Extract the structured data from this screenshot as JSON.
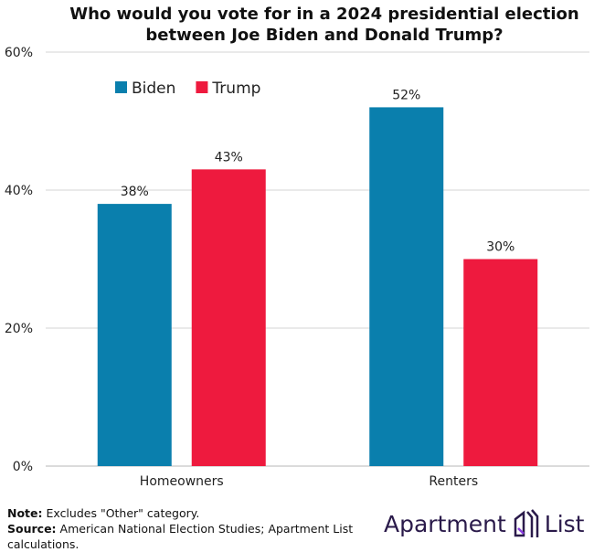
{
  "chart_data": {
    "type": "bar",
    "title": "Who would you vote for in a 2024 presidential election between Joe Biden and Donald Trump?",
    "title_lines": [
      "Who would you vote for in a 2024 presidential election",
      "between Joe Biden and Donald Trump?"
    ],
    "categories": [
      "Homeowners",
      "Renters"
    ],
    "series": [
      {
        "name": "Biden",
        "color": "#0a7fad",
        "values": [
          38,
          52
        ],
        "labels": [
          "38%",
          "52%"
        ]
      },
      {
        "name": "Trump",
        "color": "#ee1a3e",
        "values": [
          43,
          30
        ],
        "labels": [
          "43%",
          "30%"
        ]
      }
    ],
    "ylim": [
      0,
      60
    ],
    "yticks": [
      0,
      20,
      40,
      60
    ],
    "ytick_labels": [
      "0%",
      "20%",
      "40%",
      "60%"
    ],
    "grid": true,
    "legend_placement": "top-left"
  },
  "notes": {
    "note_label": "Note:",
    "note_text": " Excludes \"Other\" category.",
    "source_label": "Source:",
    "source_text": " American National Election Studies; Apartment List calculations."
  },
  "logo": {
    "left": "Apartment",
    "right": "List"
  }
}
